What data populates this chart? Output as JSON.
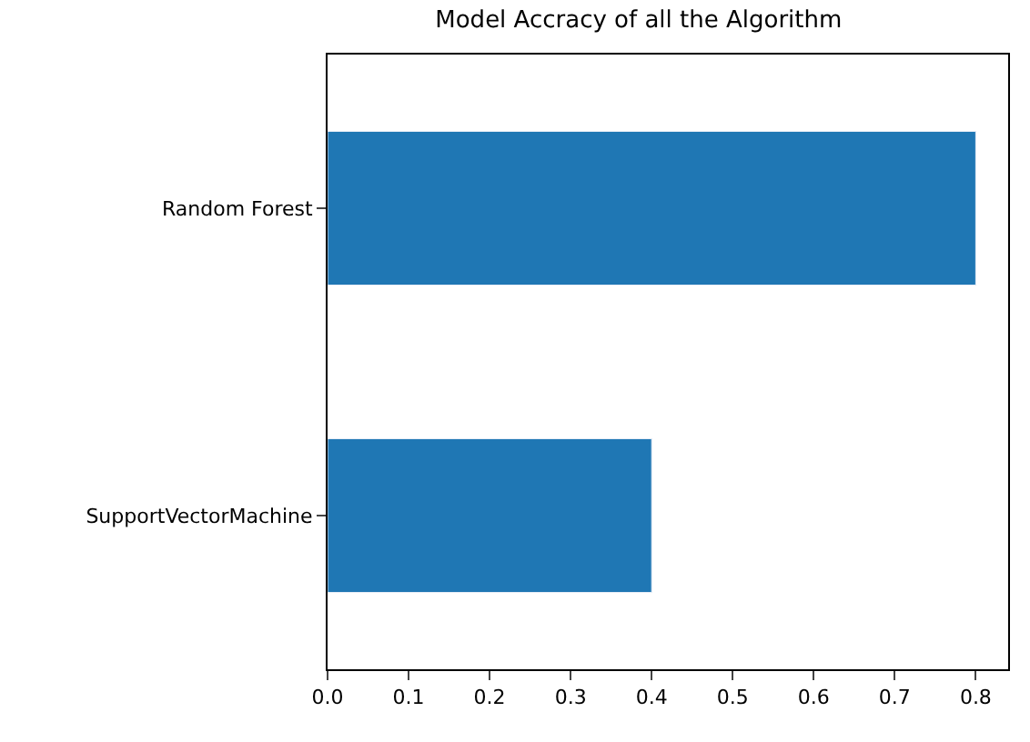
{
  "chart_data": {
    "type": "bar",
    "orientation": "horizontal",
    "title": "Model Accracy of all the Algorithm",
    "categories": [
      "Random Forest",
      "SupportVectorMachine"
    ],
    "values": [
      0.8,
      0.4
    ],
    "color": "#1f77b4",
    "xlim": [
      0,
      0.84
    ],
    "xticks": [
      {
        "value": 0,
        "label": "0.0"
      },
      0.1,
      0.2,
      0.3,
      0.4,
      0.5,
      0.6,
      0.7,
      0.8
    ]
  }
}
